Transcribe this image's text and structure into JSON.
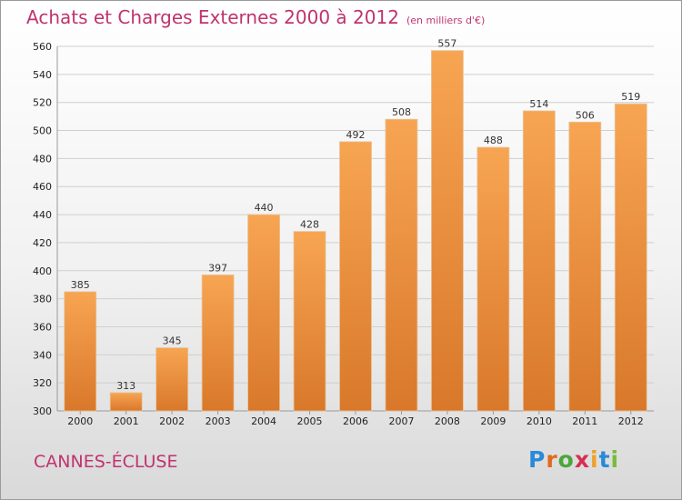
{
  "header": {
    "title": "Achats et Charges Externes 2000 à 2012",
    "subtitle": "(en milliers d'€)"
  },
  "footer": {
    "commune": "CANNES-ÉCLUSE",
    "logo_letters": [
      "P",
      "r",
      "o",
      "x",
      "i",
      "t",
      "i"
    ]
  },
  "colors": {
    "title": "#c0336f",
    "bar_top": "#f7a553",
    "bar_bottom": "#d9782a",
    "grid": "#cfcfcf"
  },
  "chart_data": {
    "type": "bar",
    "title": "Achats et Charges Externes 2000 à 2012",
    "subtitle": "(en milliers d'€)",
    "categories": [
      "2000",
      "2001",
      "2002",
      "2003",
      "2004",
      "2005",
      "2006",
      "2007",
      "2008",
      "2009",
      "2010",
      "2011",
      "2012"
    ],
    "values": [
      385,
      313,
      345,
      397,
      440,
      428,
      492,
      508,
      557,
      488,
      514,
      506,
      519
    ],
    "ylim": [
      300,
      560
    ],
    "yticks": [
      300,
      320,
      340,
      360,
      380,
      400,
      420,
      440,
      460,
      480,
      500,
      520,
      540,
      560
    ],
    "grid": true,
    "xlabel": "",
    "ylabel": ""
  }
}
